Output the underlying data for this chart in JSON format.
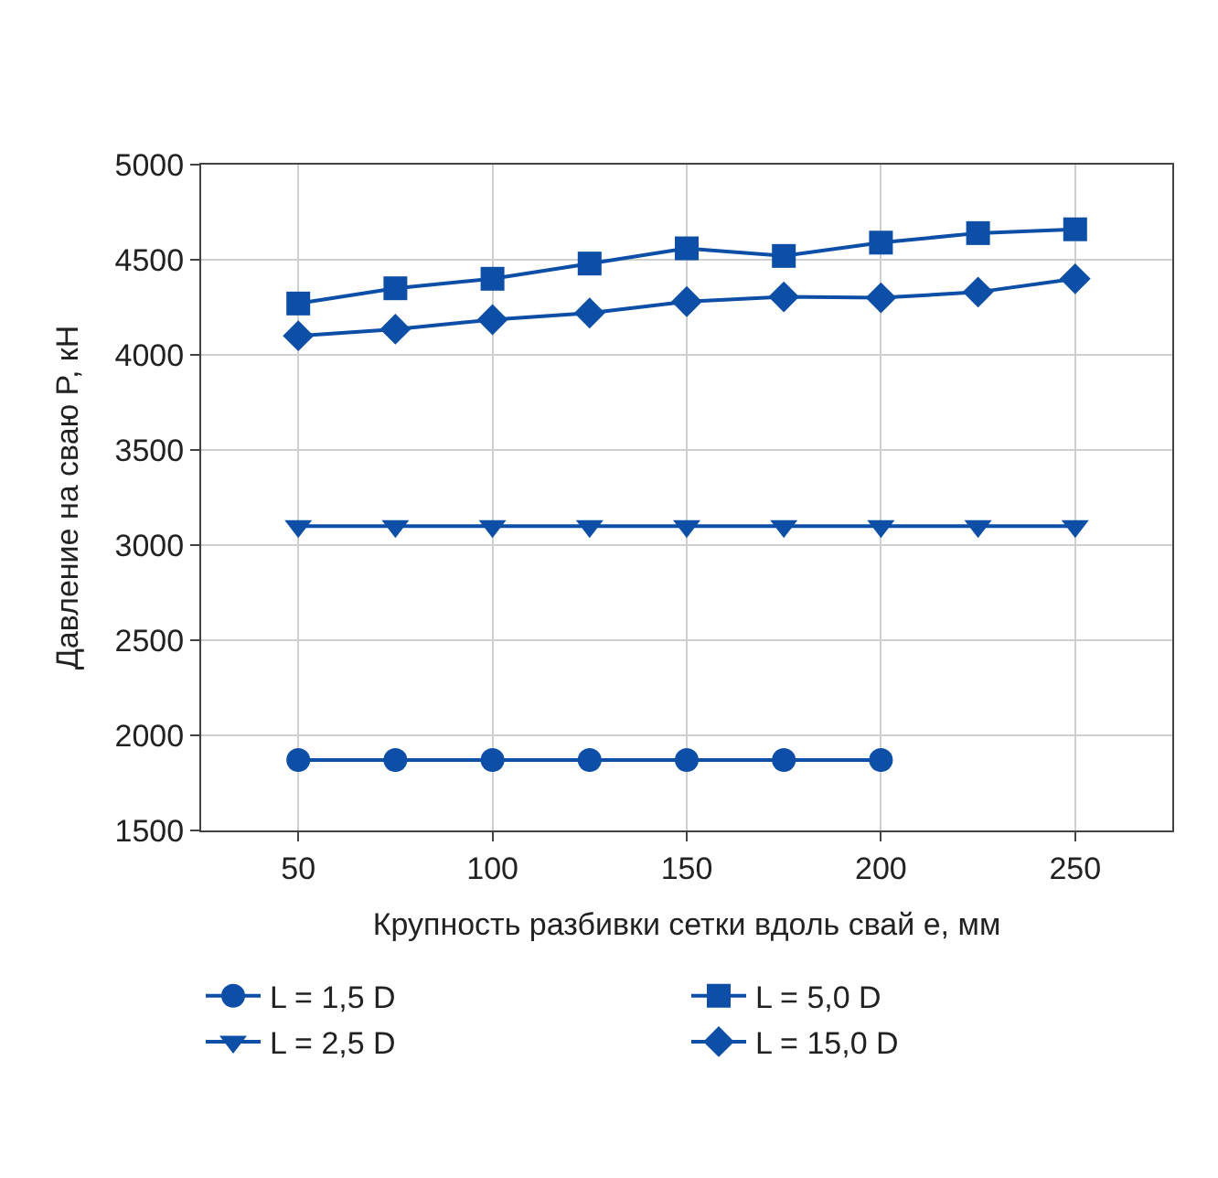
{
  "chart_data": {
    "type": "line",
    "xlabel": "Крупность разбивки сетки вдоль свай e, мм",
    "ylabel": "Давление на сваю P, кН",
    "x": [
      50,
      75,
      100,
      125,
      150,
      175,
      200,
      225,
      250
    ],
    "series": [
      {
        "name": "L = 1,5 D",
        "color": "#0d4ea6",
        "marker": "circle",
        "values": [
          1870,
          1870,
          1870,
          1870,
          1870,
          1870,
          1870,
          null,
          null
        ]
      },
      {
        "name": "L = 5,0 D",
        "color": "#0d4ea6",
        "marker": "square",
        "values": [
          4270,
          4350,
          4400,
          4480,
          4560,
          4520,
          4590,
          4640,
          4660
        ]
      },
      {
        "name": "L = 2,5 D",
        "color": "#0d4ea6",
        "marker": "triangle",
        "values": [
          3100,
          3100,
          3100,
          3100,
          3100,
          3100,
          3100,
          3100,
          3100
        ]
      },
      {
        "name": "L = 15,0 D",
        "color": "#0d4ea6",
        "marker": "diamond",
        "values": [
          4100,
          4135,
          4185,
          4220,
          4280,
          4305,
          4300,
          4330,
          4400
        ]
      }
    ],
    "xlim": [
      25,
      275
    ],
    "xticks": [
      50,
      100,
      150,
      200,
      250
    ],
    "ylim": [
      1500,
      5000
    ],
    "yticks": [
      1500,
      2000,
      2500,
      3000,
      3500,
      4000,
      4500,
      5000
    ],
    "grid": true,
    "legend": "bottom",
    "line_style": "solid"
  }
}
